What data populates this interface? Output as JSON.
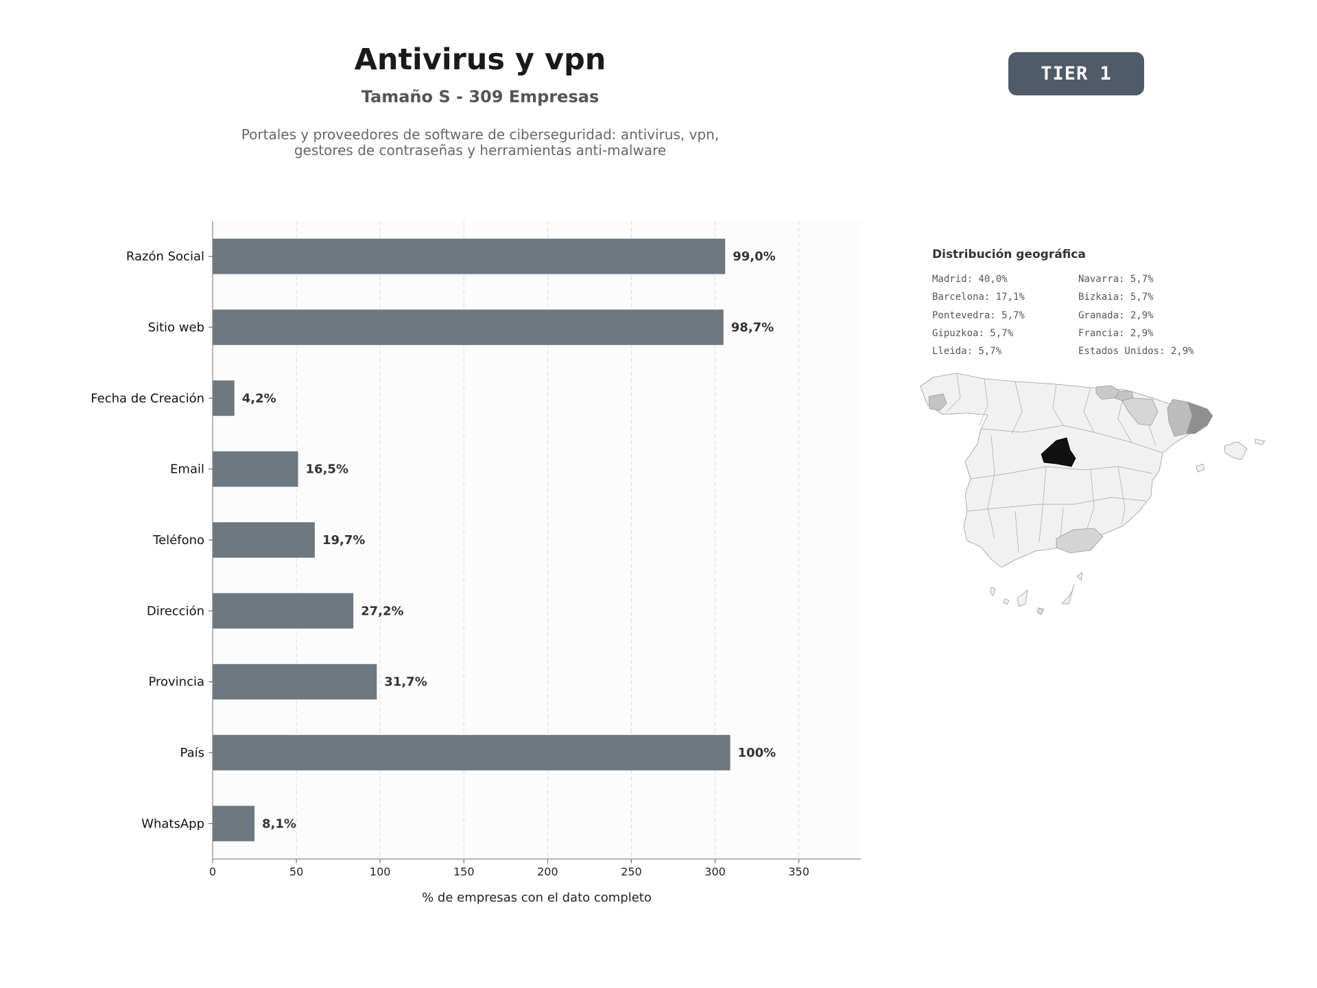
{
  "header": {
    "title": "Antivirus y vpn",
    "subtitle": "Tamaño S - 309 Empresas",
    "description_lines": [
      "Portales y proveedores de software de ciberseguridad: antivirus, vpn,",
      "gestores de contraseñas y herramientas anti-malware"
    ],
    "badge": "TIER 1"
  },
  "chart_data": {
    "type": "bar",
    "orientation": "horizontal",
    "categories": [
      "Razón Social",
      "Sitio web",
      "Fecha de Creación",
      "Email",
      "Teléfono",
      "Dirección",
      "Provincia",
      "País",
      "WhatsApp"
    ],
    "values": [
      306,
      305,
      13,
      51,
      61,
      84,
      98,
      309,
      25
    ],
    "labels": [
      "99,0%",
      "98,7%",
      "4,2%",
      "16,5%",
      "19,7%",
      "27,2%",
      "31,7%",
      "100%",
      "8,1%"
    ],
    "xlabel": "% de empresas con el dato completo",
    "ylabel": "",
    "xlim": [
      0,
      387
    ],
    "xticks": [
      0,
      50,
      100,
      150,
      200,
      250,
      300,
      350
    ],
    "grid": true,
    "bar_color": "#6e7881"
  },
  "geo": {
    "title": "Distribución geográfica",
    "entries": [
      "Madrid: 40,0%",
      "Navarra: 5,7%",
      "Barcelona: 17,1%",
      "Bizkaia: 5,7%",
      "Pontevedra: 5,7%",
      "Granada: 2,9%",
      "Gipuzkoa: 5,7%",
      "Francia: 2,9%",
      "Lleida: 5,7%",
      "Estados Unidos: 2,9%"
    ]
  }
}
